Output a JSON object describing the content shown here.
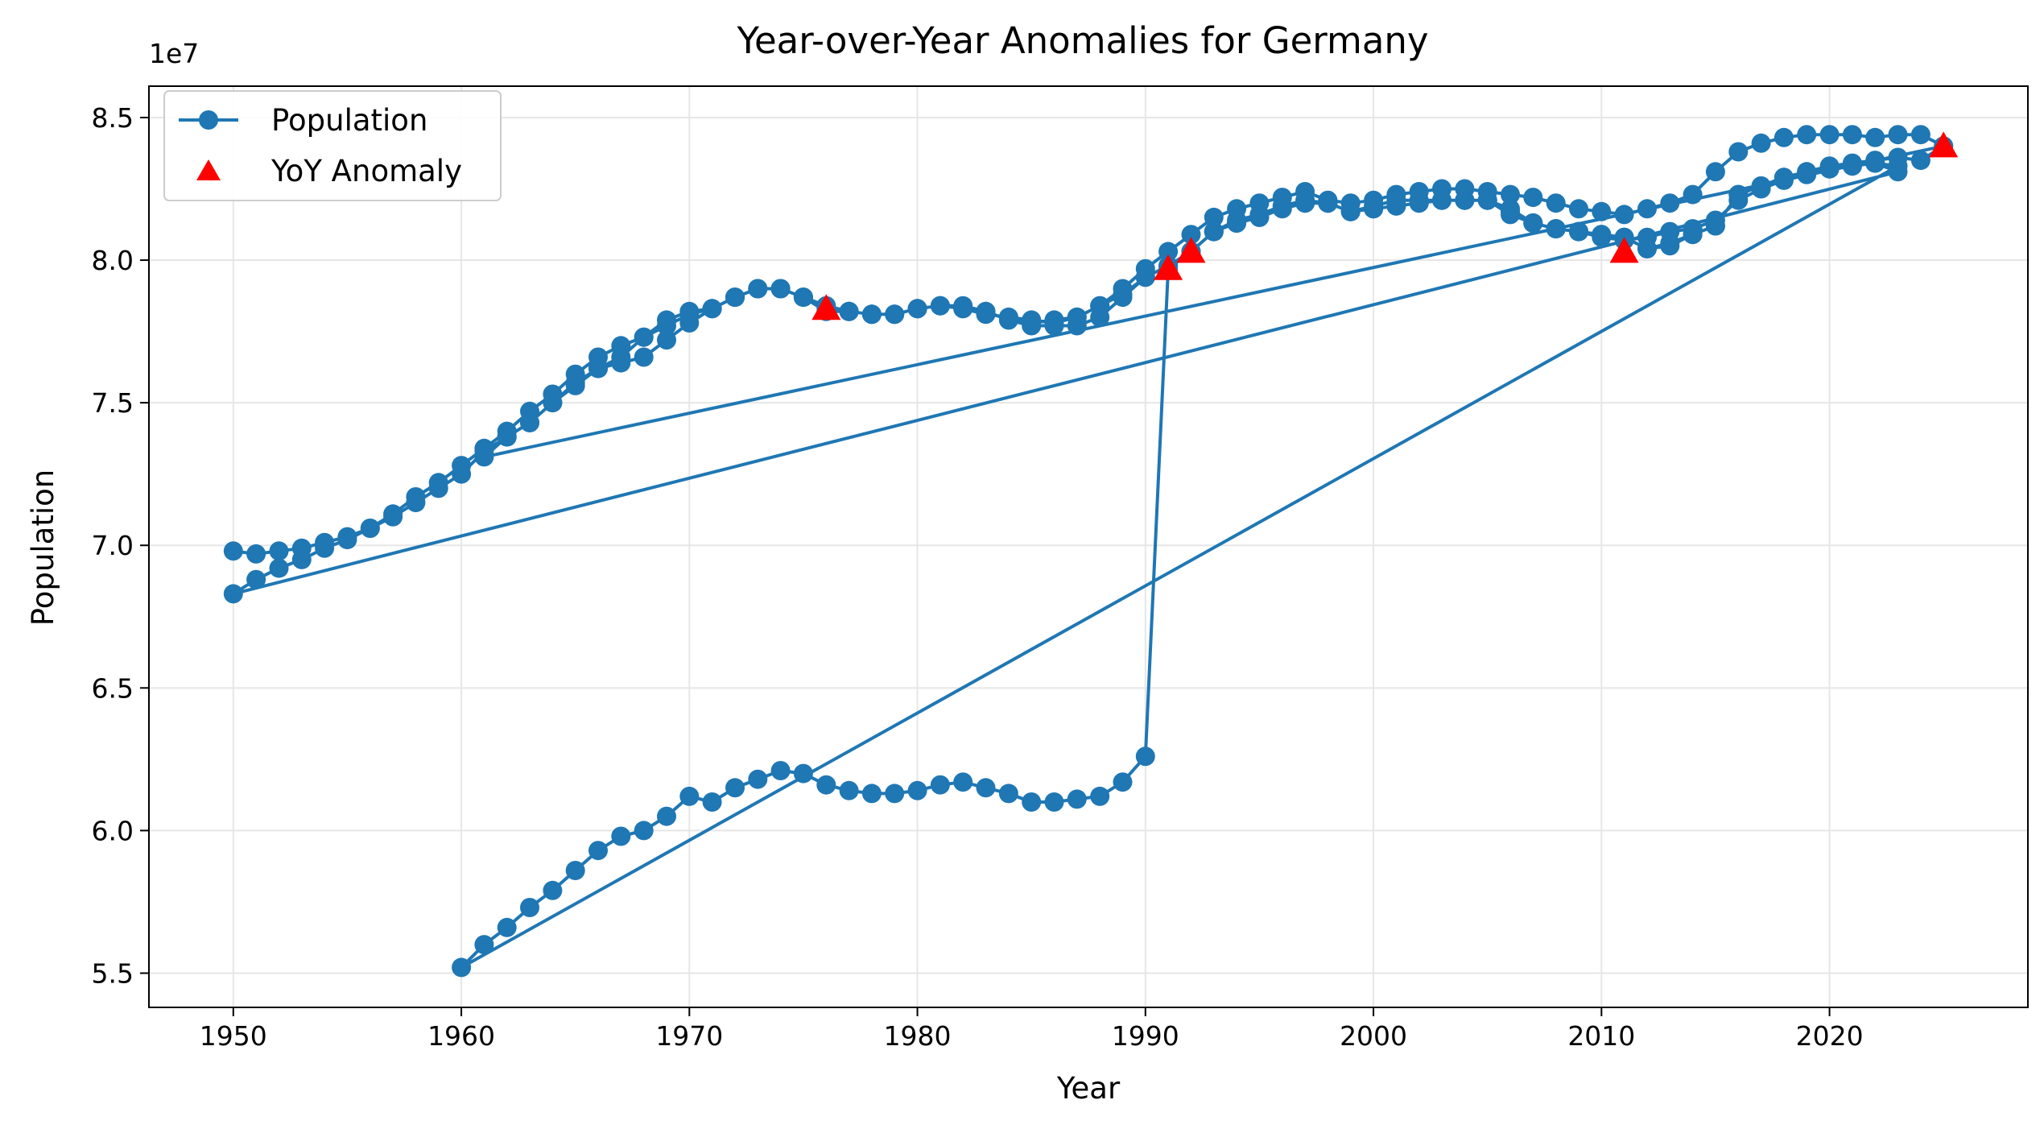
{
  "chart_data": {
    "type": "line",
    "title": "Year-over-Year Anomalies for Germany",
    "xlabel": "Year",
    "ylabel": "Population",
    "y_offset_label": "1e7",
    "xlim": [
      1946.3,
      1928.7
    ],
    "ylim": [
      5.38,
      8.61
    ],
    "x_ticks": [
      1950,
      1960,
      1970,
      1980,
      1990,
      2000,
      2010,
      2020
    ],
    "y_ticks": [
      5.5,
      6.0,
      6.5,
      7.0,
      7.5,
      8.0,
      8.5
    ],
    "y_tick_labels": [
      "5.5",
      "6.0",
      "6.5",
      "7.0",
      "7.5",
      "8.0",
      "8.5"
    ],
    "grid": true,
    "legend_position": "top-left",
    "colors": {
      "series": "#1f77b4",
      "anomaly": "#ff0000"
    },
    "series": [
      {
        "name": "Population",
        "style": "line-with-circle-markers",
        "segments": [
          {
            "x": [
              1950,
              1951,
              1952,
              1953,
              1954,
              1955,
              1956,
              1957,
              1958,
              1959,
              1960,
              1961,
              1962,
              1963,
              1964,
              1965,
              1966,
              1967,
              1968,
              1969,
              1970,
              1971,
              1972,
              1973,
              1974,
              1975,
              1976,
              1977,
              1978,
              1979,
              1980,
              1981,
              1982,
              1983,
              1984,
              1985,
              1986,
              1987,
              1988,
              1989,
              1990,
              1991,
              1992,
              1993,
              1994,
              1995,
              1996,
              1997,
              1998,
              1999,
              2000,
              2001,
              2002,
              2003,
              2004,
              2005,
              2006,
              2007,
              2008,
              2009,
              2010,
              2011,
              2012,
              2013,
              2014,
              2015,
              2016,
              2017,
              2018,
              2019,
              2020,
              2021,
              2022,
              2023,
              2024,
              2025
            ],
            "y": [
              6.98,
              6.97,
              6.98,
              6.99,
              7.01,
              7.03,
              7.06,
              7.11,
              7.17,
              7.22,
              7.28,
              7.34,
              7.4,
              7.47,
              7.53,
              7.6,
              7.66,
              7.7,
              7.73,
              7.79,
              7.82,
              7.83,
              7.87,
              7.9,
              7.9,
              7.87,
              7.84,
              7.82,
              7.81,
              7.81,
              7.83,
              7.84,
              7.83,
              7.82,
              7.79,
              7.78,
              7.79,
              7.8,
              7.84,
              7.9,
              7.97,
              8.03,
              8.09,
              8.15,
              8.18,
              8.2,
              8.22,
              8.24,
              8.21,
              8.2,
              8.21,
              8.23,
              8.24,
              8.25,
              8.25,
              8.24,
              8.23,
              8.22,
              8.2,
              8.18,
              8.17,
              8.16,
              8.18,
              8.2,
              8.23,
              8.31,
              8.38,
              8.41,
              8.43,
              8.44,
              8.44,
              8.44,
              8.43,
              8.44,
              8.44,
              8.4
            ]
          },
          {
            "x": [
              1961,
              1962,
              1963,
              1964,
              1965,
              1966,
              1967,
              1968,
              1969,
              1970,
              1971,
              1972,
              1973,
              1974,
              1975,
              1976,
              1977,
              1978,
              1979,
              1980,
              1981,
              1982,
              1983,
              1984,
              1985,
              1986,
              1987,
              1988,
              1989,
              1990,
              1991,
              1992,
              1993,
              1994,
              1995,
              1996,
              1997,
              1998,
              1999,
              2000,
              2001,
              2002,
              2003,
              2004,
              2005,
              2006,
              2007,
              2008,
              2009,
              2010,
              2011,
              2012,
              2013,
              2014,
              2015,
              2016,
              2017,
              2018,
              2019,
              2020,
              2021,
              2022,
              2023
            ],
            "y": [
              7.31,
              7.38,
              7.43,
              7.5,
              7.57,
              7.62,
              7.64,
              7.66,
              7.72,
              7.78,
              7.83,
              7.87,
              7.9,
              7.9,
              7.87,
              7.82,
              7.82,
              7.81,
              7.81,
              7.83,
              7.84,
              7.84,
              7.82,
              7.79,
              7.77,
              7.77,
              7.77,
              7.8,
              7.87,
              7.94,
              7.98,
              8.03,
              8.1,
              8.13,
              8.15,
              8.19,
              8.2,
              8.2,
              8.17,
              8.18,
              8.19,
              8.2,
              8.21,
              8.21,
              8.21,
              8.17,
              8.13,
              8.11,
              8.1,
              8.09,
              8.08,
              8.04,
              8.06,
              8.09,
              8.12,
              8.23,
              8.26,
              8.29,
              8.31,
              8.32,
              8.33,
              8.34,
              8.31
            ]
          },
          {
            "x": [
              1950,
              1951,
              1952,
              1953,
              1954,
              1955,
              1956,
              1957,
              1958,
              1959,
              1960,
              1961,
              1962,
              1963,
              1964,
              1965,
              1966,
              1967,
              1968,
              1969,
              1970,
              1971,
              1972,
              1973,
              1974,
              1975,
              1976,
              1977,
              1978,
              1979,
              1980,
              1981,
              1982,
              1983,
              1984,
              1985,
              1986,
              1987,
              1988,
              1989,
              1990,
              1991,
              1992,
              1993,
              1994,
              1995,
              1996,
              1997,
              1998,
              1999,
              2000,
              2001,
              2002,
              2003,
              2004,
              2005,
              2006,
              2007,
              2008,
              2009,
              2010,
              2011,
              2012,
              2013,
              2014,
              2015,
              2016,
              2017,
              2018,
              2019,
              2020,
              2021,
              2022,
              2023
            ],
            "y": [
              6.83,
              6.88,
              6.92,
              6.95,
              6.99,
              7.02,
              7.06,
              7.1,
              7.15,
              7.2,
              7.25,
              7.33,
              7.38,
              7.43,
              7.5,
              7.56,
              7.62,
              7.66,
              7.73,
              7.77,
              7.81,
              7.83,
              7.87,
              7.9,
              7.9,
              7.87,
              7.83,
              7.82,
              7.81,
              7.81,
              7.83,
              7.84,
              7.83,
              7.81,
              7.8,
              7.79,
              7.78,
              7.8,
              7.84,
              7.88,
              7.94,
              7.98,
              8.03,
              8.1,
              8.13,
              8.15,
              8.18,
              8.2,
              8.2,
              8.17,
              8.18,
              8.19,
              8.2,
              8.21,
              8.21,
              8.21,
              8.16,
              8.13,
              8.11,
              8.1,
              8.08,
              8.07,
              8.08,
              8.1,
              8.11,
              8.14,
              8.21,
              8.25,
              8.28,
              8.3,
              8.32,
              8.33,
              8.34,
              8.33
            ]
          },
          {
            "x": [
              1960,
              1961,
              1962,
              1963,
              1964,
              1965,
              1966,
              1967,
              1968,
              1969,
              1970,
              1971,
              1972,
              1973,
              1974,
              1975,
              1976,
              1977,
              1978,
              1979,
              1980,
              1981,
              1982,
              1983,
              1984,
              1985,
              1986,
              1987,
              1988,
              1989,
              1990,
              1991,
              1992,
              1993,
              1994,
              1995,
              1996,
              1997,
              1998,
              1999,
              2000,
              2001,
              2002,
              2003,
              2004,
              2005,
              2006,
              2007,
              2008,
              2009,
              2010,
              2011,
              2012,
              2013,
              2014,
              2015,
              2016,
              2017,
              2018,
              2019,
              2020,
              2021,
              2022,
              2023,
              2024,
              2025
            ],
            "y": [
              5.52,
              5.6,
              5.66,
              5.73,
              5.79,
              5.86,
              5.93,
              5.98,
              6.0,
              6.05,
              6.12,
              6.1,
              6.15,
              6.18,
              6.21,
              6.2,
              6.16,
              6.14,
              6.13,
              6.13,
              6.14,
              6.16,
              6.17,
              6.15,
              6.13,
              6.1,
              6.1,
              6.11,
              6.12,
              6.17,
              6.26,
              7.97,
              8.03,
              8.1,
              8.14,
              8.16,
              8.19,
              8.21,
              8.2,
              8.17,
              8.19,
              8.21,
              8.21,
              8.21,
              8.21,
              8.21,
              8.18,
              8.13,
              8.11,
              8.1,
              8.09,
              8.08,
              8.04,
              8.05,
              8.09,
              8.12,
              8.23,
              8.26,
              8.29,
              8.31,
              8.33,
              8.34,
              8.35,
              8.36,
              8.35,
              8.4
            ]
          }
        ]
      },
      {
        "name": "YoY Anomaly",
        "style": "red-triangle-markers",
        "x": [
          1976,
          1991,
          1992,
          2011,
          2025
        ],
        "y": [
          7.83,
          7.97,
          8.03,
          8.03,
          8.4
        ]
      }
    ]
  }
}
